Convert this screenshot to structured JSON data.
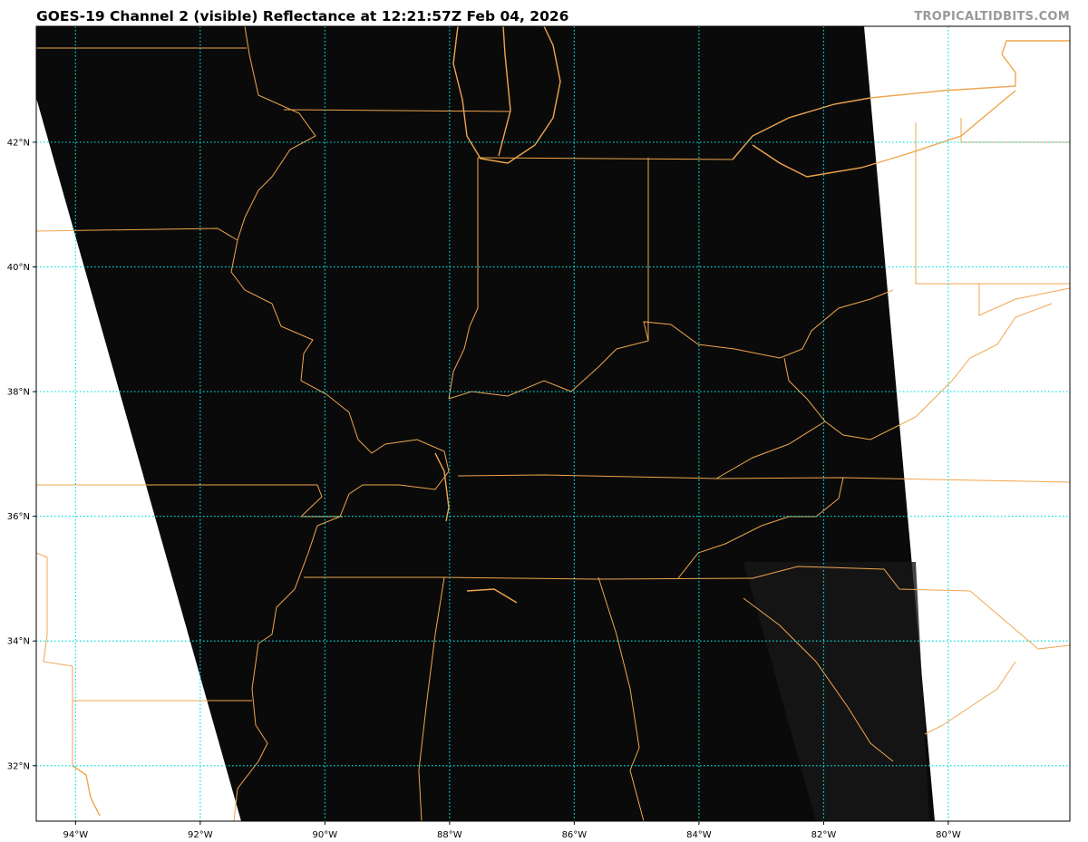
{
  "header": {
    "title": "GOES-19 Channel 2 (visible) Reflectance at 12:21:57Z Feb 04, 2026",
    "credit": "TROPICALTIDBITS.COM"
  },
  "map": {
    "satellite": "GOES-19",
    "channel": "Channel 2 (visible)",
    "extent": {
      "lon_west": -94.63,
      "lon_east": -78.05,
      "lat_south": 31.11,
      "lat_north": 43.86
    },
    "longitude_ticks": [
      {
        "value": -94,
        "label": "94°W"
      },
      {
        "value": -92,
        "label": "92°W"
      },
      {
        "value": -90,
        "label": "90°W"
      },
      {
        "value": -88,
        "label": "88°W"
      },
      {
        "value": -86,
        "label": "86°W"
      },
      {
        "value": -84,
        "label": "84°W"
      },
      {
        "value": -82,
        "label": "82°W"
      },
      {
        "value": -80,
        "label": "80°W"
      }
    ],
    "latitude_ticks": [
      {
        "value": 42,
        "label": "42°N"
      },
      {
        "value": 40,
        "label": "40°N"
      },
      {
        "value": 38,
        "label": "38°N"
      },
      {
        "value": 36,
        "label": "36°N"
      },
      {
        "value": 34,
        "label": "34°N"
      },
      {
        "value": 32,
        "label": "32°N"
      }
    ],
    "colors": {
      "border": "#f0a550",
      "grid": "#00e0e0",
      "imagery": "#0a0a0a",
      "no_data": "#ffffff"
    }
  }
}
